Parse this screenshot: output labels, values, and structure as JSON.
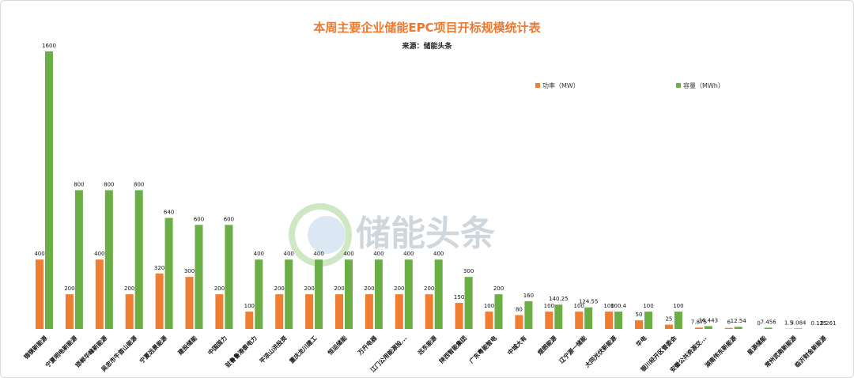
{
  "chart_data": {
    "type": "bar",
    "title": "本周主要企业储能EPC项目开标规模统计表",
    "subtitle": "来源：储能头条",
    "watermark": "储能头条",
    "legend_position": "top-right",
    "grid": false,
    "ylim": [
      0,
      1650
    ],
    "categories": [
      "锦镁新能源",
      "宁夏明电新能源",
      "邯郸华峰新能源",
      "吴忠市牛首山能源",
      "宁夏远景能源",
      "建投储能",
      "中国国力",
      "驻鲁鲁港泰电力",
      "平凉山洪投资",
      "重庆龙川建工",
      "恒运储能",
      "万升电器",
      "江门公用能源投...",
      "远东能源",
      "陕西智能集团",
      "广东粤能智电",
      "中城大有",
      "煜朗能源",
      "辽宁源一储能",
      "大同光伏新能源",
      "华电",
      "银川经开区管委会",
      "安徽公共资源交...",
      "湖南伟东新能源",
      "星源储能",
      "常州武南新能源",
      "临沂财金新能源"
    ],
    "series": [
      {
        "name": "功率（MW）",
        "color": "#ef7d32",
        "values": [
          400,
          200,
          400,
          200,
          320,
          300,
          200,
          100,
          200,
          200,
          200,
          200,
          200,
          200,
          150,
          100,
          80,
          100,
          100,
          100,
          50,
          25,
          7.875,
          6,
          0,
          1.5,
          0.125
        ],
        "labels": [
          "400",
          "200",
          "400",
          "200",
          "320",
          "300",
          "200",
          "100",
          "200",
          "200",
          "200",
          "200",
          "200",
          "200",
          "150",
          "100",
          "80",
          "100",
          "100",
          "100",
          "50",
          "25",
          "7.875",
          "6",
          "0",
          "1.5",
          "0.125"
        ]
      },
      {
        "name": "容量（MWh）",
        "color": "#6aae45",
        "values": [
          1600,
          800,
          800,
          800,
          640,
          600,
          600,
          400,
          400,
          400,
          400,
          400,
          400,
          400,
          300,
          200,
          160,
          140.25,
          124.55,
          100.4,
          100,
          100,
          16.443,
          12.54,
          7.456,
          3.084,
          0.261
        ],
        "labels": [
          "1600",
          "800",
          "800",
          "800",
          "640",
          "600",
          "600",
          "400",
          "400",
          "400",
          "400",
          "400",
          "400",
          "400",
          "300",
          "200",
          "160",
          "140.25",
          "124.55",
          "100.4",
          "100",
          "100",
          "16.443",
          "12.54",
          "7.456",
          "3.084",
          "0.261"
        ]
      }
    ]
  }
}
